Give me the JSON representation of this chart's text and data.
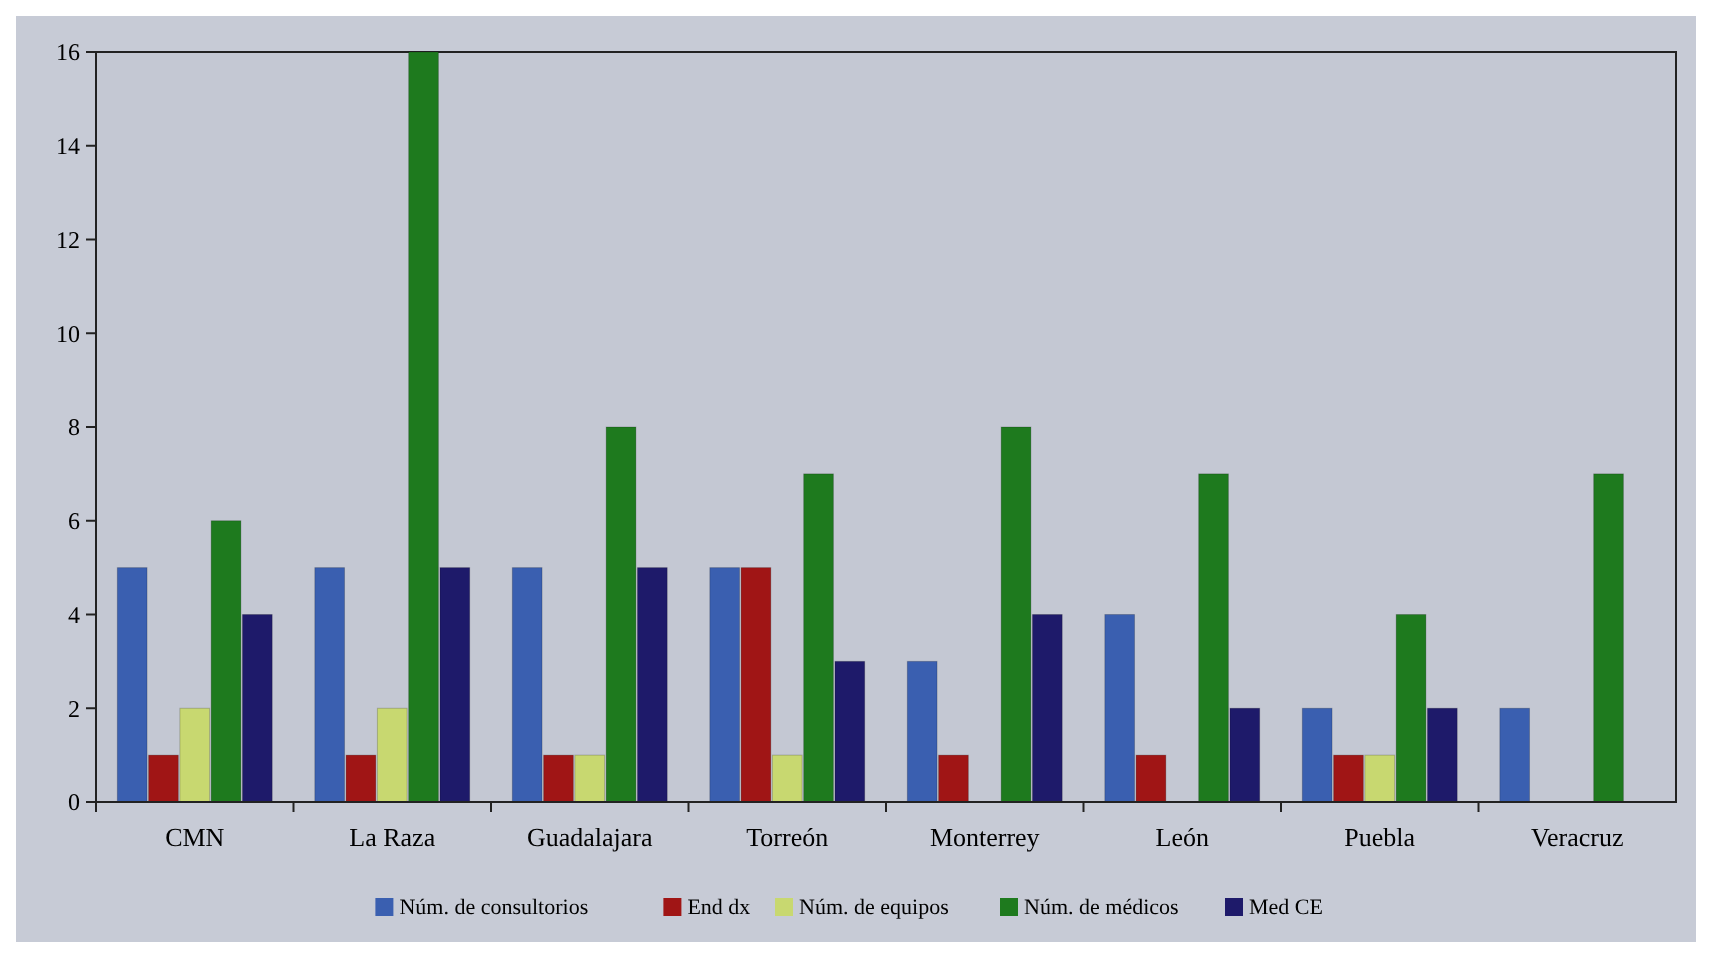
{
  "chart_data": {
    "type": "bar",
    "categories": [
      "CMN",
      "La Raza",
      "Guadalajara",
      "Torreón",
      "Monterrey",
      "León",
      "Puebla",
      "Veracruz"
    ],
    "series": [
      {
        "name": "Núm. de consultorios",
        "color": "#3a5fb0",
        "values": [
          5,
          5,
          5,
          5,
          3,
          4,
          2,
          2
        ]
      },
      {
        "name": "End dx",
        "color": "#a01515",
        "values": [
          1,
          1,
          1,
          5,
          1,
          1,
          1,
          0
        ]
      },
      {
        "name": "Núm. de equipos",
        "color": "#c8d870",
        "values": [
          2,
          2,
          1,
          1,
          0,
          0,
          1,
          0
        ]
      },
      {
        "name": "Núm. de médicos",
        "color": "#1e7a1e",
        "values": [
          6,
          16,
          8,
          7,
          8,
          7,
          4,
          7
        ]
      },
      {
        "name": "Med CE",
        "color": "#1e1a6a",
        "values": [
          4,
          5,
          5,
          3,
          4,
          2,
          2,
          0
        ]
      }
    ],
    "ylim": [
      0,
      16
    ],
    "yticks": [
      0,
      2,
      4,
      6,
      8,
      10,
      12,
      14,
      16
    ],
    "grid": false,
    "legend": "bottom"
  }
}
